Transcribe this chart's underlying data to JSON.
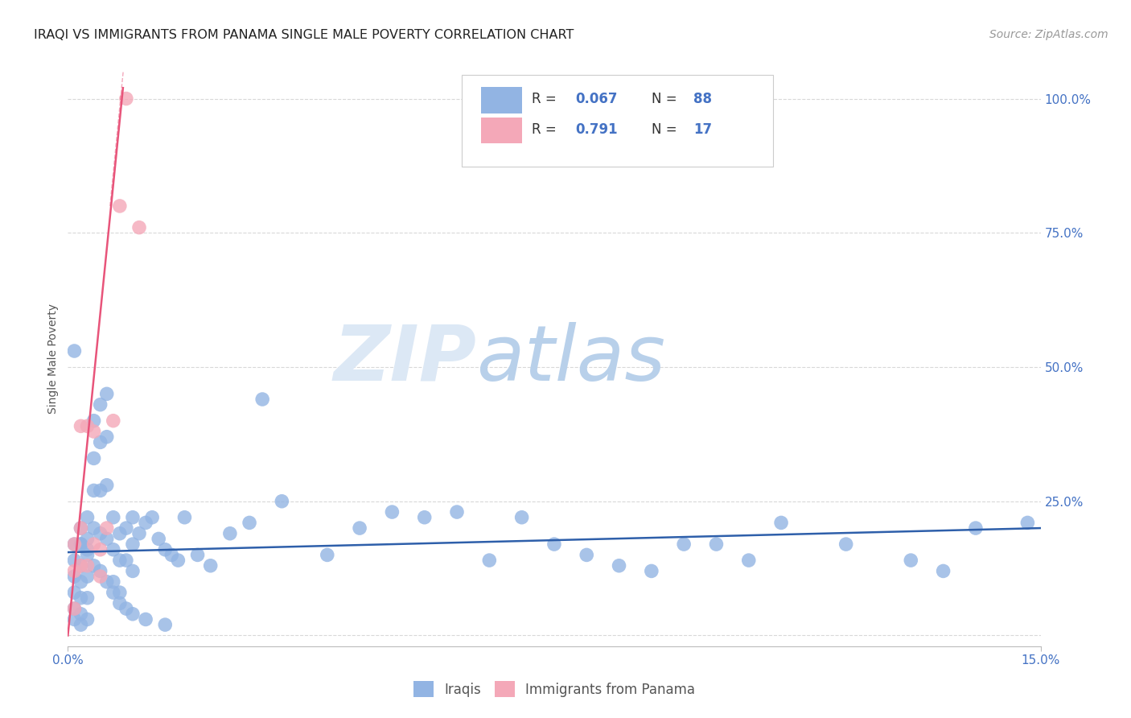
{
  "title": "IRAQI VS IMMIGRANTS FROM PANAMA SINGLE MALE POVERTY CORRELATION CHART",
  "source": "Source: ZipAtlas.com",
  "ylabel": "Single Male Poverty",
  "xlim": [
    0.0,
    0.15
  ],
  "ylim": [
    -0.02,
    1.05
  ],
  "xtick_positions": [
    0.0,
    0.15
  ],
  "xticklabels": [
    "0.0%",
    "15.0%"
  ],
  "ytick_positions": [
    0.0,
    0.25,
    0.5,
    0.75,
    1.0
  ],
  "yticklabels": [
    "",
    "25.0%",
    "50.0%",
    "75.0%",
    "100.0%"
  ],
  "background_color": "#ffffff",
  "grid_color": "#d8d8d8",
  "iraqis_color": "#92b4e3",
  "panama_color": "#f4a8b8",
  "trendline_iraqis_color": "#2e5faa",
  "trendline_panama_color": "#e8547a",
  "iraqis_x": [
    0.001,
    0.001,
    0.001,
    0.001,
    0.001,
    0.001,
    0.002,
    0.002,
    0.002,
    0.002,
    0.002,
    0.002,
    0.002,
    0.003,
    0.003,
    0.003,
    0.003,
    0.003,
    0.003,
    0.004,
    0.004,
    0.004,
    0.004,
    0.005,
    0.005,
    0.005,
    0.005,
    0.006,
    0.006,
    0.006,
    0.006,
    0.007,
    0.007,
    0.007,
    0.008,
    0.008,
    0.008,
    0.009,
    0.009,
    0.01,
    0.01,
    0.01,
    0.011,
    0.012,
    0.013,
    0.014,
    0.015,
    0.016,
    0.017,
    0.018,
    0.02,
    0.022,
    0.025,
    0.028,
    0.03,
    0.033,
    0.04,
    0.045,
    0.05,
    0.055,
    0.06,
    0.065,
    0.07,
    0.075,
    0.08,
    0.085,
    0.09,
    0.095,
    0.1,
    0.105,
    0.11,
    0.12,
    0.13,
    0.135,
    0.14,
    0.148,
    0.001,
    0.002,
    0.003,
    0.004,
    0.005,
    0.006,
    0.007,
    0.008,
    0.009,
    0.01,
    0.012,
    0.015
  ],
  "iraqis_y": [
    0.17,
    0.14,
    0.11,
    0.08,
    0.05,
    0.03,
    0.2,
    0.17,
    0.13,
    0.1,
    0.07,
    0.04,
    0.02,
    0.22,
    0.18,
    0.15,
    0.11,
    0.07,
    0.03,
    0.4,
    0.33,
    0.27,
    0.2,
    0.43,
    0.36,
    0.27,
    0.19,
    0.45,
    0.37,
    0.28,
    0.18,
    0.22,
    0.16,
    0.1,
    0.19,
    0.14,
    0.08,
    0.2,
    0.14,
    0.22,
    0.17,
    0.12,
    0.19,
    0.21,
    0.22,
    0.18,
    0.16,
    0.15,
    0.14,
    0.22,
    0.15,
    0.13,
    0.19,
    0.21,
    0.44,
    0.25,
    0.15,
    0.2,
    0.23,
    0.22,
    0.23,
    0.14,
    0.22,
    0.17,
    0.15,
    0.13,
    0.12,
    0.17,
    0.17,
    0.14,
    0.21,
    0.17,
    0.14,
    0.12,
    0.2,
    0.21,
    0.53,
    0.17,
    0.16,
    0.13,
    0.12,
    0.1,
    0.08,
    0.06,
    0.05,
    0.04,
    0.03,
    0.02
  ],
  "panama_x": [
    0.001,
    0.001,
    0.001,
    0.002,
    0.002,
    0.002,
    0.003,
    0.003,
    0.004,
    0.004,
    0.005,
    0.005,
    0.006,
    0.007,
    0.008,
    0.009,
    0.011
  ],
  "panama_y": [
    0.17,
    0.12,
    0.05,
    0.39,
    0.2,
    0.13,
    0.39,
    0.13,
    0.38,
    0.17,
    0.16,
    0.11,
    0.2,
    0.4,
    0.8,
    1.0,
    0.76
  ],
  "iraq_trend_x": [
    0.0,
    0.15
  ],
  "iraq_trend_y": [
    0.155,
    0.2
  ],
  "panama_trend_x": [
    0.0,
    0.0085
  ],
  "panama_trend_y": [
    0.0,
    1.02
  ]
}
